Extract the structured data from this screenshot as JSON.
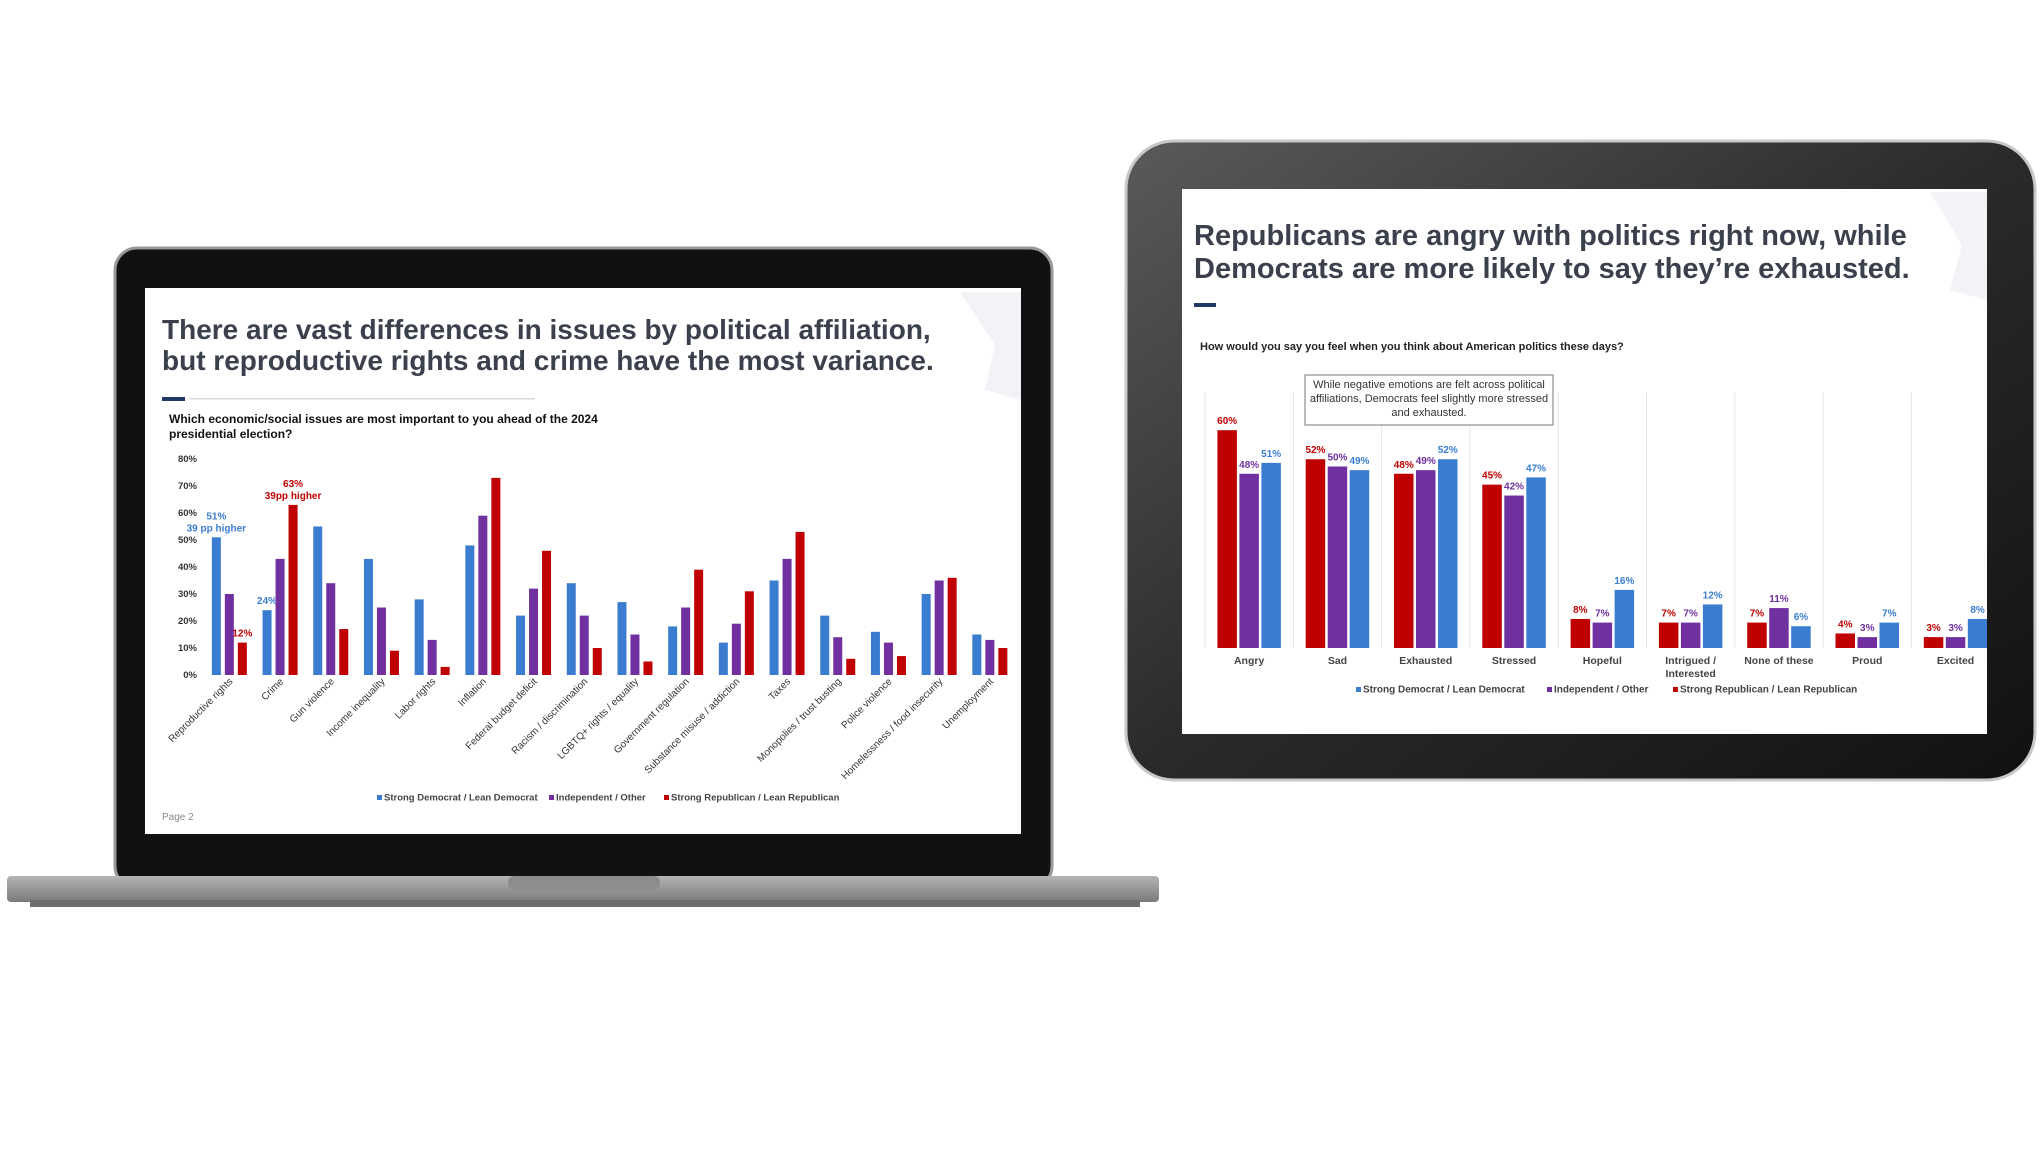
{
  "chart_data": [
    {
      "type": "bar",
      "title": [
        "There are vast differences in issues by political affiliation,",
        "but reproductive rights and crime have the most variance."
      ],
      "subtitle": "Which economic/social issues are most important to you ahead of the 2024 presidential election?",
      "categories": [
        "Reproductive rights",
        "Crime",
        "Gun violence",
        "Income inequality",
        "Labor rights",
        "Inflation",
        "Federal budget deficit",
        "Racism / discrimination",
        "LGBTQ+ rights / equality",
        "Government regulation",
        "Substance misuse / addiction",
        "Taxes",
        "Monopolies / trust busting",
        "Police violence",
        "Homelessness / food insecurity",
        "Unemployment"
      ],
      "series": [
        {
          "name": "Strong Democrat / Lean Democrat",
          "color": "#3a7dd0",
          "values": [
            51,
            24,
            55,
            43,
            28,
            48,
            22,
            34,
            27,
            18,
            12,
            35,
            22,
            16,
            30,
            15
          ],
          "value_labels": [
            "51%",
            "24%",
            null,
            null,
            null,
            null,
            null,
            null,
            null,
            null,
            null,
            null,
            null,
            null,
            null,
            null
          ]
        },
        {
          "name": "Independent / Other",
          "color": "#7030a0",
          "values": [
            30,
            43,
            34,
            25,
            13,
            59,
            32,
            22,
            15,
            25,
            19,
            43,
            14,
            12,
            35,
            13
          ]
        },
        {
          "name": "Strong Republican / Lean Republican",
          "color": "#c00000",
          "values": [
            12,
            63,
            17,
            9,
            3,
            73,
            46,
            10,
            5,
            39,
            31,
            53,
            6,
            7,
            36,
            10
          ],
          "value_labels": [
            "12%",
            "63%",
            null,
            null,
            null,
            null,
            null,
            null,
            null,
            null,
            null,
            null,
            null,
            null,
            null,
            null
          ]
        }
      ],
      "annotations": [
        "39 pp higher",
        "39pp higher"
      ],
      "ylim": [
        0,
        80
      ],
      "yticks": [
        {
          "value": 0,
          "label": "0%"
        },
        {
          "value": 10,
          "label": "10%"
        },
        {
          "value": 20,
          "label": "20%"
        },
        {
          "value": 30,
          "label": "30%"
        },
        {
          "value": 40,
          "label": "40%"
        },
        {
          "value": 50,
          "label": "50%"
        },
        {
          "value": 60,
          "label": "60%"
        },
        {
          "value": 70,
          "label": "70%"
        },
        {
          "value": 80,
          "label": "80%"
        }
      ],
      "footer": "Page 2"
    },
    {
      "type": "bar",
      "title": [
        "Republicans are angry with politics right now, while",
        "Democrats are more likely to say they’re exhausted."
      ],
      "subtitle": "How would you say you feel when you think about American politics these days?",
      "annotations": [
        "While negative emotions are felt across political affiliations, Democrats feel slightly more stressed and exhausted."
      ],
      "categories": [
        "Angry",
        "Sad",
        "Exhausted",
        "Stressed",
        "Hopeful",
        "Intrigued / Interested",
        "None of these",
        "Proud",
        "Excited"
      ],
      "series": [
        {
          "name": "Strong Democrat / Lean Democrat",
          "color": "#3a7dd0",
          "values": [
            51,
            49,
            52,
            47,
            16,
            12,
            6,
            7,
            8
          ],
          "value_labels": [
            "51%",
            "49%",
            "52%",
            "47%",
            "16%",
            "12%",
            "6%",
            "7%",
            "8%"
          ]
        },
        {
          "name": "Independent / Other",
          "color": "#7030a0",
          "values": [
            48,
            50,
            49,
            42,
            7,
            7,
            11,
            3,
            3
          ],
          "value_labels": [
            "48%",
            "50%",
            "49%",
            "42%",
            "7%",
            "7%",
            "11%",
            "3%",
            "3%"
          ]
        },
        {
          "name": "Strong Republican / Lean Republican",
          "color": "#c00000",
          "values": [
            60,
            52,
            48,
            45,
            8,
            7,
            7,
            4,
            3
          ],
          "value_labels": [
            "60%",
            "52%",
            "48%",
            "45%",
            "8%",
            "7%",
            "7%",
            "4%",
            "3%"
          ]
        }
      ]
    }
  ]
}
